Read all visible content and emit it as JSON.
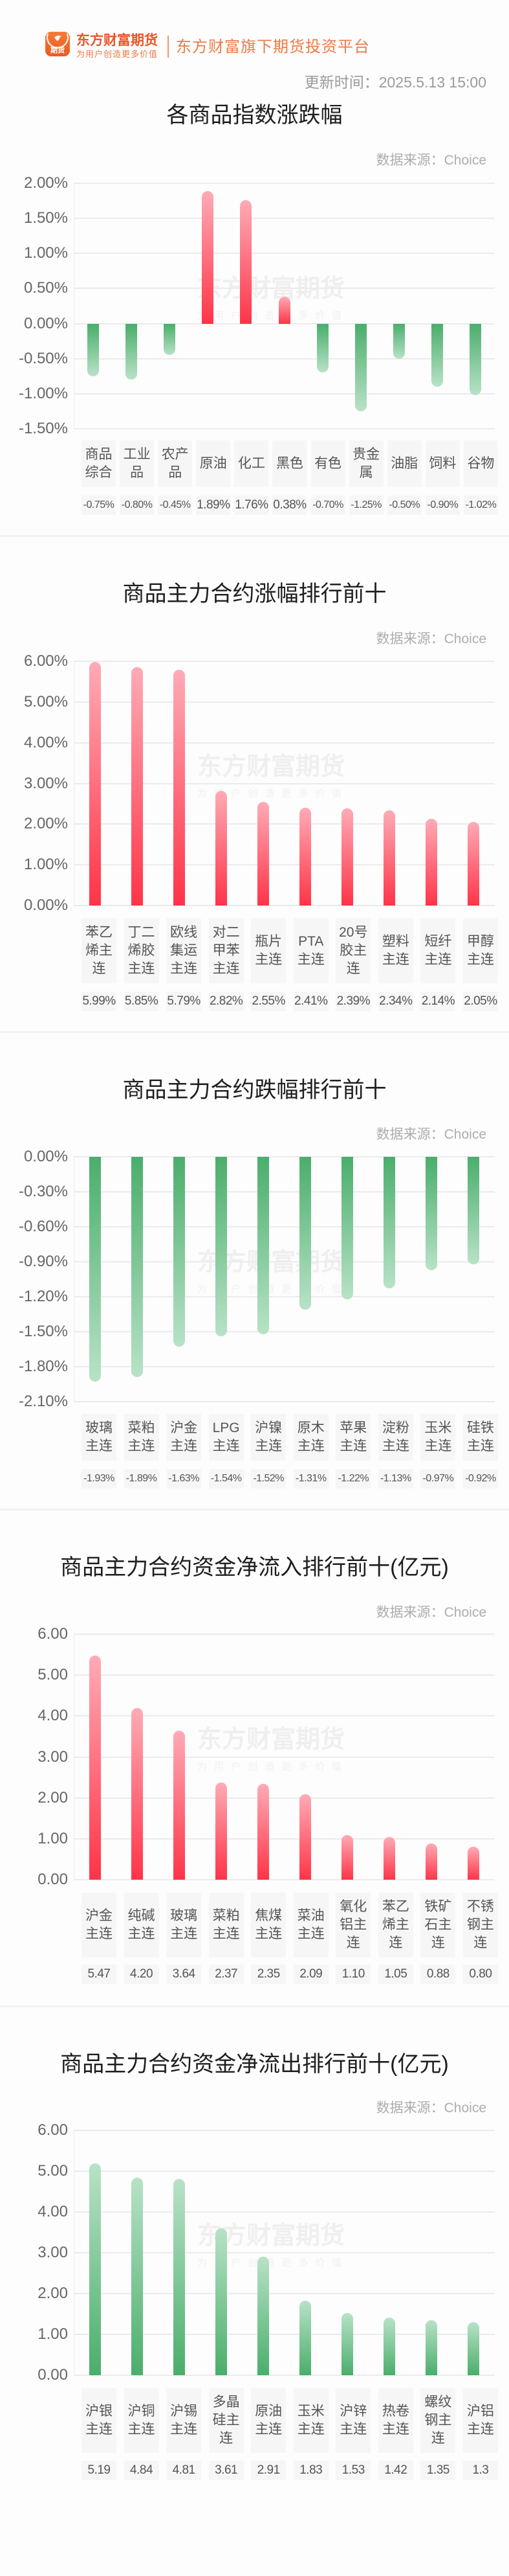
{
  "header": {
    "logo": {
      "icon_text": "期货",
      "brand_name": "东方财富期货",
      "slogan": "为用户创造更多价值"
    },
    "platform_tagline": "东方财富旗下期货投资平台",
    "update_time_label": "更新时间：",
    "update_time": "2025.5.13 15:00"
  },
  "colors": {
    "brand": "#e8562a",
    "up_base": "#ff3448",
    "up_tip": "#ffabb6",
    "down_base": "#4aae6b",
    "down_tip": "#b8e2c7"
  },
  "watermark": {
    "title": "东方财富期货",
    "subtitle": "为用户创造更多价值"
  },
  "chart_data": [
    {
      "type": "bar",
      "title": "各商品指数涨跌幅",
      "source": "数据来源：Choice",
      "xlabel": "",
      "ylabel": "",
      "unit": "%",
      "grid": true,
      "legend": null,
      "bar_color": "by_sign",
      "categories": [
        "商品综合",
        "工业品",
        "农产品",
        "原油",
        "化工",
        "黑色",
        "有色",
        "贵金属",
        "油脂",
        "饲料",
        "谷物"
      ],
      "values": [
        -0.75,
        -0.8,
        -0.45,
        1.89,
        1.76,
        0.38,
        -0.7,
        -1.25,
        -0.5,
        -0.9,
        -1.02
      ],
      "value_labels": [
        "-0.75%",
        "-0.80%",
        "-0.45%",
        "1.89%",
        "1.76%",
        "0.38%",
        "-0.70%",
        "-1.25%",
        "-0.50%",
        "-0.90%",
        "-1.02%"
      ],
      "yticks": [
        2.0,
        1.5,
        1.0,
        0.5,
        0.0,
        -0.5,
        -1.0,
        -1.5
      ],
      "ytick_labels": [
        "2.00%",
        "1.50%",
        "1.00%",
        "0.50%",
        "0.00%",
        "-0.50%",
        "-1.00%",
        "-1.50%"
      ],
      "ylim": [
        -1.5,
        2.0
      ]
    },
    {
      "type": "bar",
      "title": "商品主力合约涨幅排行前十",
      "source": "数据来源：Choice",
      "xlabel": "",
      "ylabel": "",
      "unit": "%",
      "grid": true,
      "legend": null,
      "bar_color": "up",
      "categories": [
        "苯乙烯主连",
        "丁二烯胶主连",
        "欧线集运主连",
        "对二甲苯主连",
        "瓶片主连",
        "PTA主连",
        "20号胶主连",
        "塑料主连",
        "短纤主连",
        "甲醇主连"
      ],
      "values": [
        5.99,
        5.85,
        5.79,
        2.82,
        2.55,
        2.41,
        2.39,
        2.34,
        2.14,
        2.05
      ],
      "value_labels": [
        "5.99%",
        "5.85%",
        "5.79%",
        "2.82%",
        "2.55%",
        "2.41%",
        "2.39%",
        "2.34%",
        "2.14%",
        "2.05%"
      ],
      "yticks": [
        6,
        5,
        4,
        3,
        2,
        1,
        0
      ],
      "ytick_labels": [
        "6.00%",
        "5.00%",
        "4.00%",
        "3.00%",
        "2.00%",
        "1.00%",
        "0.00%"
      ],
      "ylim": [
        0,
        6
      ]
    },
    {
      "type": "bar",
      "title": "商品主力合约跌幅排行前十",
      "source": "数据来源：Choice",
      "xlabel": "",
      "ylabel": "",
      "unit": "%",
      "grid": true,
      "legend": null,
      "bar_color": "down",
      "categories": [
        "玻璃主连",
        "菜粕主连",
        "沪金主连",
        "LPG主连",
        "沪镍主连",
        "原木主连",
        "苹果主连",
        "淀粉主连",
        "玉米主连",
        "硅铁主连"
      ],
      "values": [
        -1.93,
        -1.89,
        -1.63,
        -1.54,
        -1.52,
        -1.31,
        -1.22,
        -1.13,
        -0.97,
        -0.92
      ],
      "value_labels": [
        "-1.93%",
        "-1.89%",
        "-1.63%",
        "-1.54%",
        "-1.52%",
        "-1.31%",
        "-1.22%",
        "-1.13%",
        "-0.97%",
        "-0.92%"
      ],
      "yticks": [
        0,
        -0.3,
        -0.6,
        -0.9,
        -1.2,
        -1.5,
        -1.8,
        -2.1
      ],
      "ytick_labels": [
        "0.00%",
        "-0.30%",
        "-0.60%",
        "-0.90%",
        "-1.20%",
        "-1.50%",
        "-1.80%",
        "-2.10%"
      ],
      "ylim": [
        -2.1,
        0
      ]
    },
    {
      "type": "bar",
      "title": "商品主力合约资金净流入排行前十(亿元)",
      "source": "数据来源：Choice",
      "xlabel": "",
      "ylabel": "亿元",
      "unit": "亿元",
      "grid": true,
      "legend": null,
      "bar_color": "up",
      "categories": [
        "沪金主连",
        "纯碱主连",
        "玻璃主连",
        "菜粕主连",
        "焦煤主连",
        "菜油主连",
        "氧化铝主连",
        "苯乙烯主连",
        "铁矿石主连",
        "不锈钢主连"
      ],
      "values": [
        5.47,
        4.2,
        3.64,
        2.37,
        2.35,
        2.09,
        1.1,
        1.05,
        0.88,
        0.8
      ],
      "value_labels": [
        "5.47",
        "4.20",
        "3.64",
        "2.37",
        "2.35",
        "2.09",
        "1.10",
        "1.05",
        "0.88",
        "0.80"
      ],
      "yticks": [
        6,
        5,
        4,
        3,
        2,
        1,
        0
      ],
      "ytick_labels": [
        "6.00",
        "5.00",
        "4.00",
        "3.00",
        "2.00",
        "1.00",
        "0.00"
      ],
      "ylim": [
        0,
        6
      ]
    },
    {
      "type": "bar",
      "title": "商品主力合约资金净流出排行前十(亿元)",
      "source": "数据来源：Choice",
      "xlabel": "",
      "ylabel": "亿元",
      "unit": "亿元",
      "grid": true,
      "legend": null,
      "bar_color": "down",
      "categories": [
        "沪银主连",
        "沪铜主连",
        "沪锡主连",
        "多晶硅主连",
        "原油主连",
        "玉米主连",
        "沪锌主连",
        "热卷主连",
        "螺纹钢主连",
        "沪铝主连"
      ],
      "values": [
        5.19,
        4.84,
        4.81,
        3.61,
        2.91,
        1.83,
        1.53,
        1.42,
        1.35,
        1.3
      ],
      "value_labels": [
        "5.19",
        "4.84",
        "4.81",
        "3.61",
        "2.91",
        "1.83",
        "1.53",
        "1.42",
        "1.35",
        "1.3"
      ],
      "yticks": [
        6,
        5,
        4,
        3,
        2,
        1,
        0
      ],
      "ytick_labels": [
        "6.00",
        "5.00",
        "4.00",
        "3.00",
        "2.00",
        "1.00",
        "0.00"
      ],
      "ylim": [
        0,
        6
      ]
    }
  ]
}
